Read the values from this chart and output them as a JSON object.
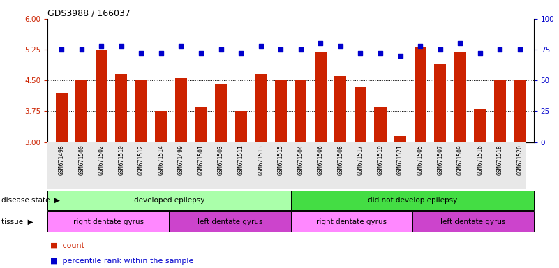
{
  "title": "GDS3988 / 166037",
  "samples": [
    "GSM671498",
    "GSM671500",
    "GSM671502",
    "GSM671510",
    "GSM671512",
    "GSM671514",
    "GSM671499",
    "GSM671501",
    "GSM671503",
    "GSM671511",
    "GSM671513",
    "GSM671515",
    "GSM671504",
    "GSM671506",
    "GSM671508",
    "GSM671517",
    "GSM671519",
    "GSM671521",
    "GSM671505",
    "GSM671507",
    "GSM671509",
    "GSM671516",
    "GSM671518",
    "GSM671520"
  ],
  "bar_values": [
    4.2,
    4.5,
    5.25,
    4.65,
    4.5,
    3.75,
    4.55,
    3.85,
    4.4,
    3.75,
    4.65,
    4.5,
    4.5,
    5.2,
    4.6,
    4.35,
    3.85,
    3.15,
    5.3,
    4.9,
    5.2,
    3.8,
    4.5,
    4.5
  ],
  "dot_values": [
    75,
    75,
    78,
    78,
    72,
    72,
    78,
    72,
    75,
    72,
    78,
    75,
    75,
    80,
    78,
    72,
    72,
    70,
    78,
    75,
    80,
    72,
    75,
    75
  ],
  "ylim_left": [
    3,
    6
  ],
  "ylim_right": [
    0,
    100
  ],
  "yticks_left": [
    3,
    3.75,
    4.5,
    5.25,
    6
  ],
  "yticks_right": [
    0,
    25,
    50,
    75,
    100
  ],
  "bar_color": "#cc2200",
  "dot_color": "#0000cc",
  "background_color": "#ffffff",
  "disease_state_groups": [
    {
      "label": "developed epilepsy",
      "start": 0,
      "end": 12,
      "color": "#aaffaa"
    },
    {
      "label": "did not develop epilepsy",
      "start": 12,
      "end": 24,
      "color": "#44dd44"
    }
  ],
  "tissue_groups": [
    {
      "label": "right dentate gyrus",
      "start": 0,
      "end": 6,
      "color": "#ff88ff"
    },
    {
      "label": "left dentate gyrus",
      "start": 6,
      "end": 12,
      "color": "#cc44cc"
    },
    {
      "label": "right dentate gyrus",
      "start": 12,
      "end": 18,
      "color": "#ff88ff"
    },
    {
      "label": "left dentate gyrus",
      "start": 18,
      "end": 24,
      "color": "#cc44cc"
    }
  ]
}
